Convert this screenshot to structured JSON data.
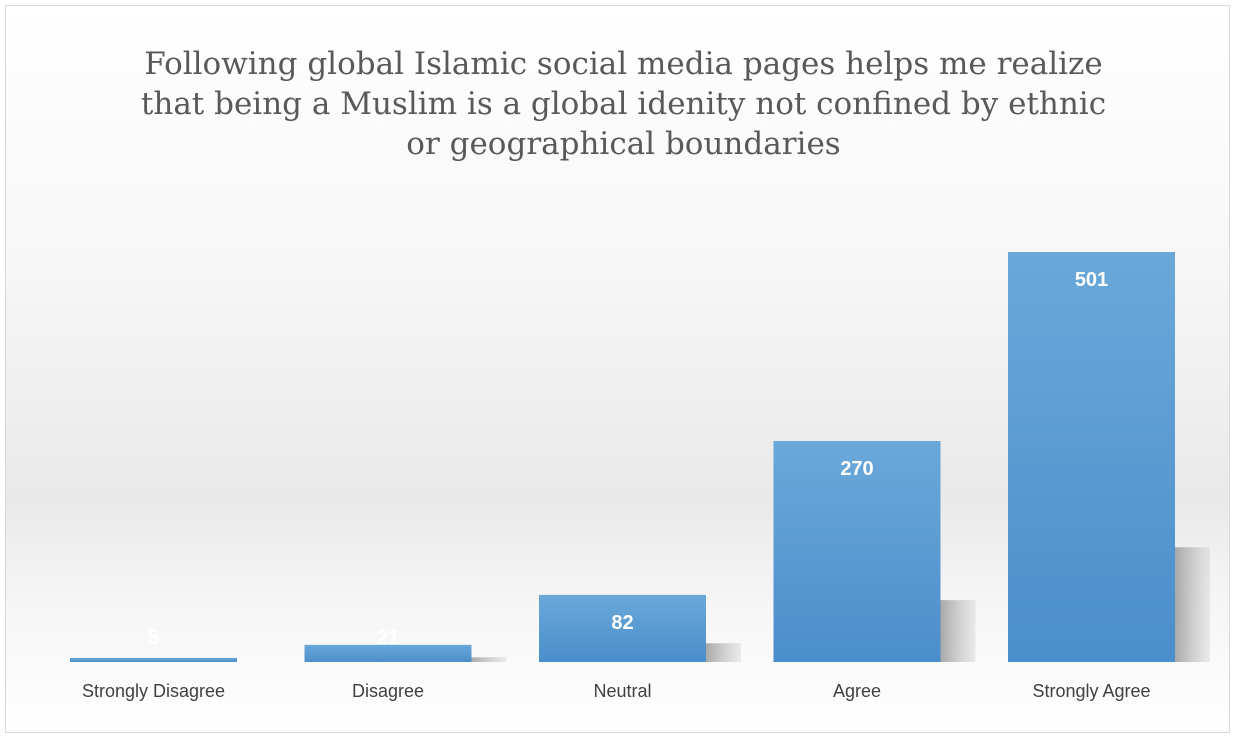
{
  "chart_data": {
    "type": "bar",
    "title_lines": [
      "Following global Islamic social media pages helps me realize",
      "that being a Muslim is a global idenity not confined by ethnic",
      "or geographical boundaries"
    ],
    "categories": [
      "Strongly Disagree",
      "Disagree",
      "Neutral",
      "Agree",
      "Strongly Agree"
    ],
    "values": [
      5,
      21,
      82,
      270,
      501
    ],
    "data_labels": [
      "5",
      "21",
      "82",
      "270",
      "501"
    ],
    "bar_color": "#4f93cf",
    "bar_color_light": "#6aa8d9",
    "label_color": "#ffffff",
    "grid": false,
    "legend": "none",
    "ylim": [
      0,
      501
    ]
  }
}
